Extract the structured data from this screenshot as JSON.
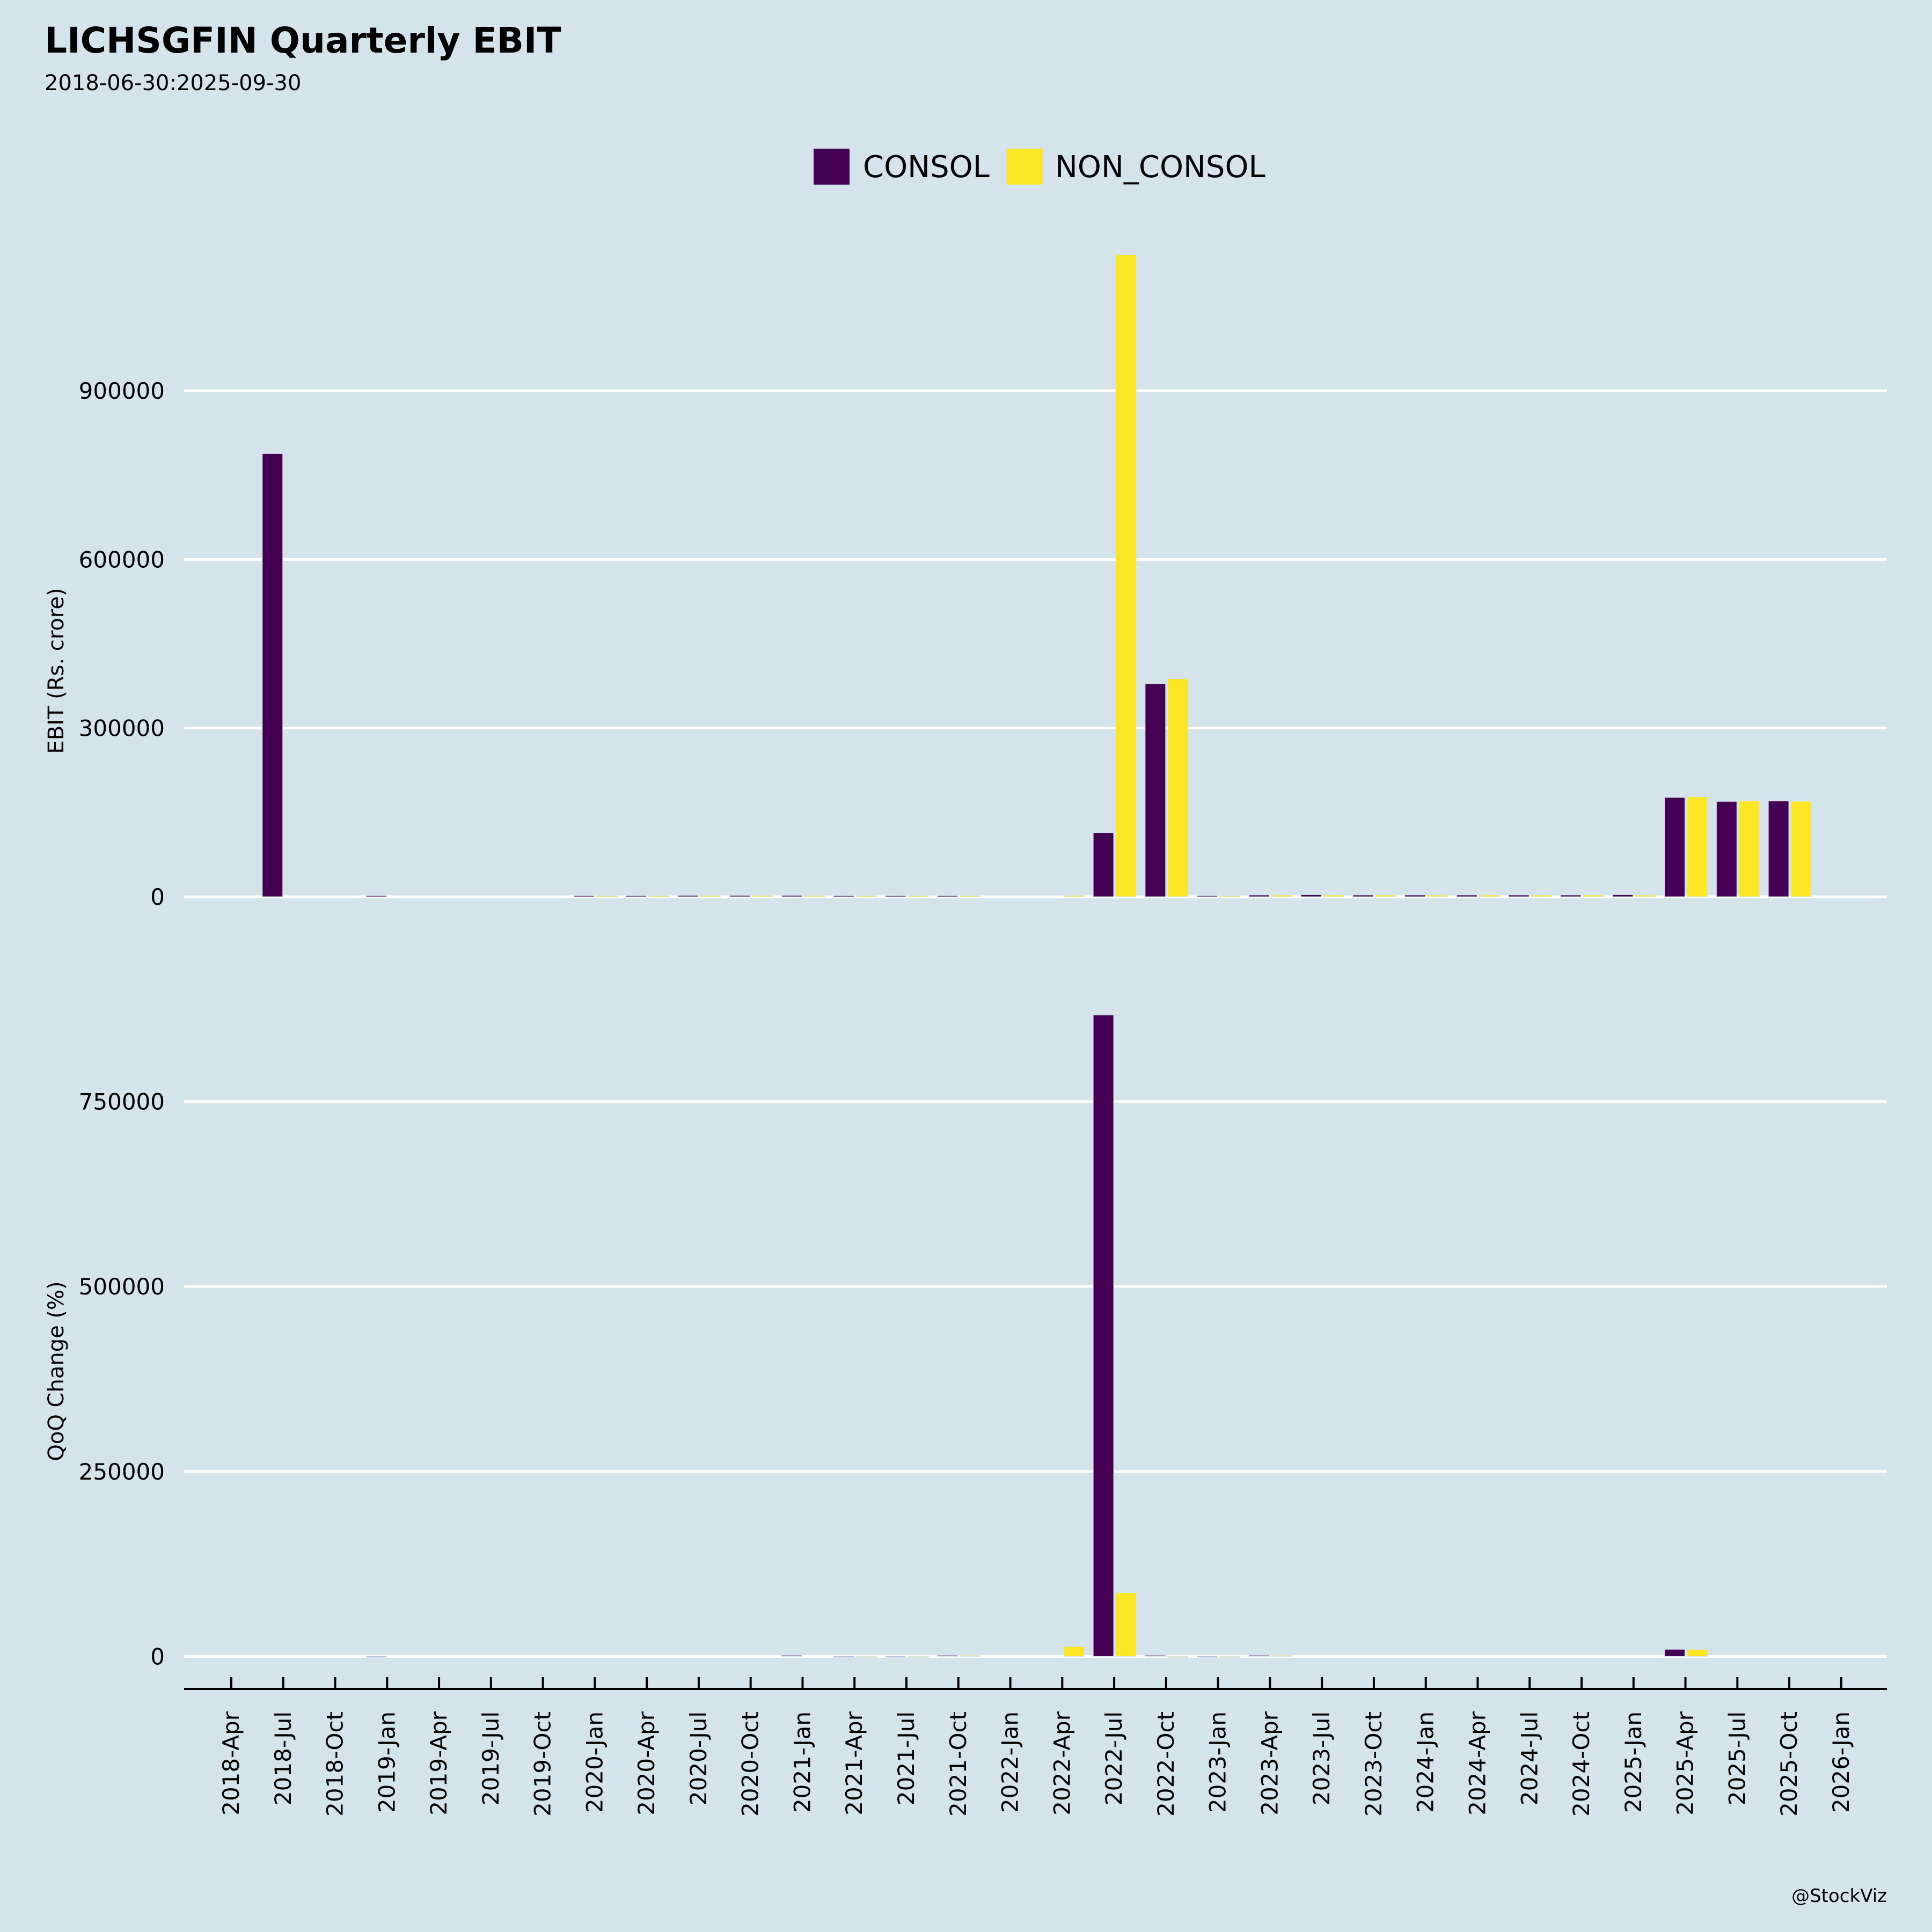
{
  "chart_data": {
    "type": "bar",
    "title": "LICHSGFIN Quarterly EBIT",
    "subtitle": "2018-06-30:2025-09-30",
    "watermark": "@StockViz",
    "legend": {
      "placement": "top-center",
      "entries": [
        {
          "name": "CONSOL",
          "color": "#440154"
        },
        {
          "name": "NON_CONSOL",
          "color": "#fde725"
        }
      ]
    },
    "x_tick_labels": [
      "2018-Apr",
      "2018-Jul",
      "2018-Oct",
      "2019-Jan",
      "2019-Apr",
      "2019-Jul",
      "2019-Oct",
      "2020-Jan",
      "2020-Apr",
      "2020-Jul",
      "2020-Oct",
      "2021-Jan",
      "2021-Apr",
      "2021-Jul",
      "2021-Oct",
      "2022-Jan",
      "2022-Apr",
      "2022-Jul",
      "2022-Oct",
      "2023-Jan",
      "2023-Apr",
      "2023-Jul",
      "2023-Oct",
      "2024-Jan",
      "2024-Apr",
      "2024-Jul",
      "2024-Oct",
      "2025-Jan",
      "2025-Apr",
      "2025-Jul",
      "2025-Oct",
      "2026-Jan"
    ],
    "grid": true,
    "panels": [
      {
        "name": "ebit",
        "ylabel": "EBIT (Rs. crore)",
        "ylim": [
          0,
          1150000
        ],
        "yticks": [
          0,
          300000,
          600000,
          900000
        ],
        "ytick_labels": [
          "0",
          "300000",
          "600000",
          "900000"
        ],
        "series": [
          {
            "name": "CONSOL",
            "points": [
              {
                "x": "2018-Jul",
                "y": 788000
              },
              {
                "x": "2019-Jan",
                "y": 2000
              },
              {
                "x": "2020-Jan",
                "y": 2000
              },
              {
                "x": "2020-Apr",
                "y": 2000
              },
              {
                "x": "2020-Jul",
                "y": 2500
              },
              {
                "x": "2020-Oct",
                "y": 2500
              },
              {
                "x": "2021-Jan",
                "y": 2500
              },
              {
                "x": "2021-Apr",
                "y": 1000
              },
              {
                "x": "2021-Jul",
                "y": 800
              },
              {
                "x": "2021-Oct",
                "y": 1000
              },
              {
                "x": "2022-Jul",
                "y": 114000
              },
              {
                "x": "2022-Oct",
                "y": 378600
              },
              {
                "x": "2023-Jan",
                "y": 1500
              },
              {
                "x": "2023-Apr",
                "y": 3000
              },
              {
                "x": "2023-Jul",
                "y": 3500
              },
              {
                "x": "2023-Oct",
                "y": 3000
              },
              {
                "x": "2024-Jan",
                "y": 3000
              },
              {
                "x": "2024-Apr",
                "y": 3000
              },
              {
                "x": "2024-Jul",
                "y": 3000
              },
              {
                "x": "2024-Oct",
                "y": 3000
              },
              {
                "x": "2025-Jan",
                "y": 3500
              },
              {
                "x": "2025-Apr",
                "y": 176600
              },
              {
                "x": "2025-Jul",
                "y": 169600
              },
              {
                "x": "2025-Oct",
                "y": 170200
              }
            ]
          },
          {
            "name": "NON_CONSOL",
            "points": [
              {
                "x": "2020-Jan",
                "y": 2000
              },
              {
                "x": "2020-Apr",
                "y": 2000
              },
              {
                "x": "2020-Jul",
                "y": 2500
              },
              {
                "x": "2020-Oct",
                "y": 2500
              },
              {
                "x": "2021-Jan",
                "y": 2500
              },
              {
                "x": "2021-Apr",
                "y": 1000
              },
              {
                "x": "2021-Jul",
                "y": 800
              },
              {
                "x": "2021-Oct",
                "y": 1000
              },
              {
                "x": "2022-Apr",
                "y": 2500
              },
              {
                "x": "2022-Jul",
                "y": 1142000
              },
              {
                "x": "2022-Oct",
                "y": 387800
              },
              {
                "x": "2023-Jan",
                "y": 1500
              },
              {
                "x": "2023-Apr",
                "y": 3000
              },
              {
                "x": "2023-Jul",
                "y": 3000
              },
              {
                "x": "2023-Oct",
                "y": 3000
              },
              {
                "x": "2024-Jan",
                "y": 3000
              },
              {
                "x": "2024-Apr",
                "y": 3000
              },
              {
                "x": "2024-Jul",
                "y": 3000
              },
              {
                "x": "2024-Oct",
                "y": 3000
              },
              {
                "x": "2025-Jan",
                "y": 3000
              },
              {
                "x": "2025-Apr",
                "y": 177800
              },
              {
                "x": "2025-Jul",
                "y": 170200
              },
              {
                "x": "2025-Oct",
                "y": 169900
              }
            ]
          }
        ]
      },
      {
        "name": "qoq",
        "ylabel": "QoQ Change (%)",
        "ylim": [
          0,
          900000
        ],
        "yticks": [
          0,
          250000,
          500000,
          750000
        ],
        "ytick_labels": [
          "0",
          "250000",
          "500000",
          "750000"
        ],
        "series": [
          {
            "name": "CONSOL",
            "points": [
              {
                "x": "2019-Jan",
                "y": -100
              },
              {
                "x": "2021-Jan",
                "y": 100
              },
              {
                "x": "2021-Apr",
                "y": -60
              },
              {
                "x": "2021-Jul",
                "y": -20
              },
              {
                "x": "2021-Oct",
                "y": 25
              },
              {
                "x": "2022-Jul",
                "y": 867000
              },
              {
                "x": "2022-Oct",
                "y": 232
              },
              {
                "x": "2023-Jan",
                "y": -100
              },
              {
                "x": "2023-Apr",
                "y": 100
              },
              {
                "x": "2025-Apr",
                "y": 9600
              }
            ]
          },
          {
            "name": "NON_CONSOL",
            "points": [
              {
                "x": "2021-Apr",
                "y": -60
              },
              {
                "x": "2021-Jul",
                "y": -20
              },
              {
                "x": "2021-Oct",
                "y": 25
              },
              {
                "x": "2022-Apr",
                "y": 13300
              },
              {
                "x": "2022-Jul",
                "y": 86100
              },
              {
                "x": "2022-Oct",
                "y": -66
              },
              {
                "x": "2023-Jan",
                "y": -100
              },
              {
                "x": "2023-Apr",
                "y": 100
              },
              {
                "x": "2025-Apr",
                "y": 9500
              }
            ]
          }
        ]
      }
    ]
  }
}
